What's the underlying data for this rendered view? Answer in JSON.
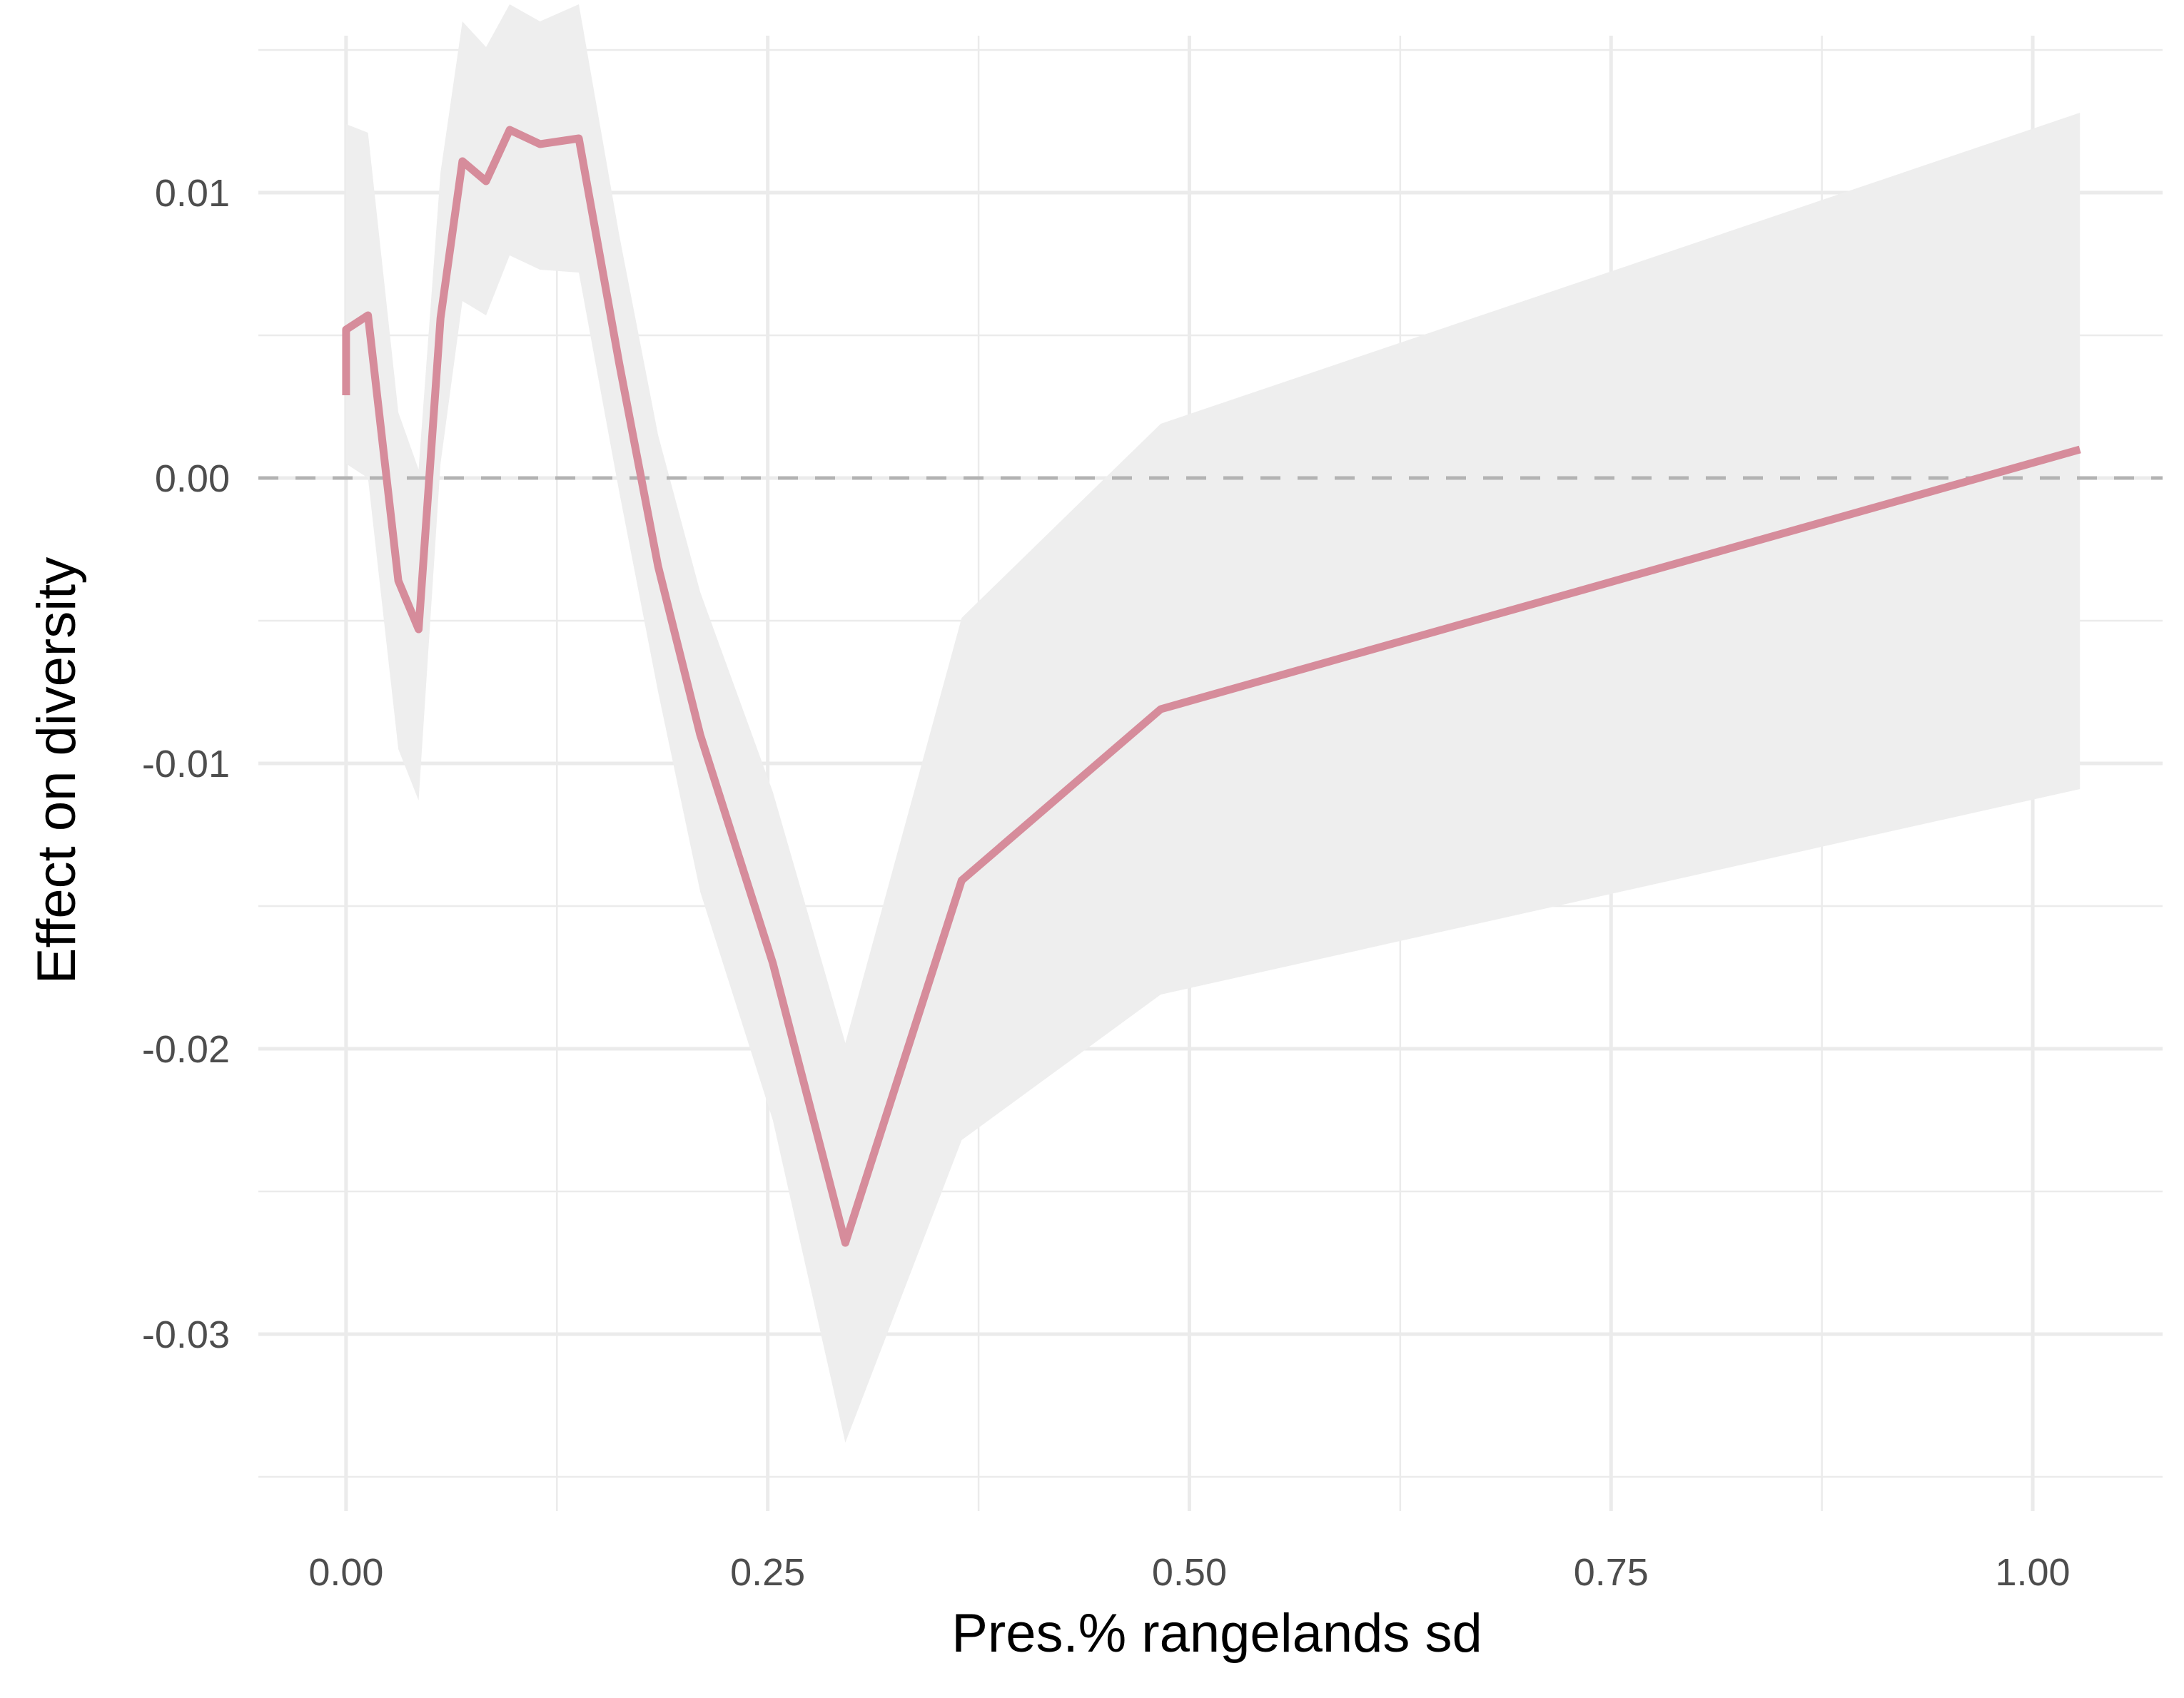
{
  "chart_data": {
    "type": "line",
    "title": "",
    "xlabel": "Pres.% rangelands sd",
    "ylabel": "Effect on diversity",
    "xlim": [
      -0.052,
      1.077
    ],
    "ylim": [
      -0.0362,
      0.0155
    ],
    "x_ticks": [
      0,
      0.25,
      0.5,
      0.75,
      1.0
    ],
    "x_tick_labels": [
      "0.00",
      "0.25",
      "0.50",
      "0.75",
      "1.00"
    ],
    "y_ticks": [
      -0.03,
      -0.02,
      -0.01,
      0.0,
      0.01
    ],
    "y_tick_labels": [
      "-0.03",
      "-0.02",
      "-0.01",
      "0.00",
      "0.01"
    ],
    "grid": true,
    "reference_line": {
      "y": 0,
      "style": "dashed",
      "color": "#b3b3b3"
    },
    "colors": {
      "line": "#d68c9b",
      "ribbon": "#eeeeee",
      "grid": "#ebebeb"
    },
    "series": [
      {
        "x": [
          0.0,
          0.0,
          0.013,
          0.031,
          0.043,
          0.056,
          0.069,
          0.083,
          0.097,
          0.115,
          0.138,
          0.162,
          0.185,
          0.21,
          0.253,
          0.296,
          0.365,
          0.483,
          1.028
        ],
        "y": [
          0.0029,
          0.0052,
          0.0057,
          -0.0036,
          -0.0053,
          0.0056,
          0.0111,
          0.0104,
          0.0122,
          0.0117,
          0.0119,
          0.004,
          -0.0031,
          -0.009,
          -0.017,
          -0.0268,
          -0.0141,
          -0.0081,
          0.001
        ],
        "lower": [
          -0.0018,
          0.0005,
          0.0,
          -0.0095,
          -0.0113,
          0.0005,
          0.0062,
          0.0057,
          0.0078,
          0.0073,
          0.0072,
          -0.0005,
          -0.0075,
          -0.0145,
          -0.0225,
          -0.0338,
          -0.0232,
          -0.0181,
          -0.0109
        ],
        "upper": [
          0.0124,
          0.0124,
          0.0121,
          0.0023,
          0.0003,
          0.0107,
          0.016,
          0.0151,
          0.0166,
          0.016,
          0.0166,
          0.0085,
          0.0015,
          -0.004,
          -0.011,
          -0.0198,
          -0.0049,
          0.0019,
          0.0128
        ]
      }
    ]
  }
}
